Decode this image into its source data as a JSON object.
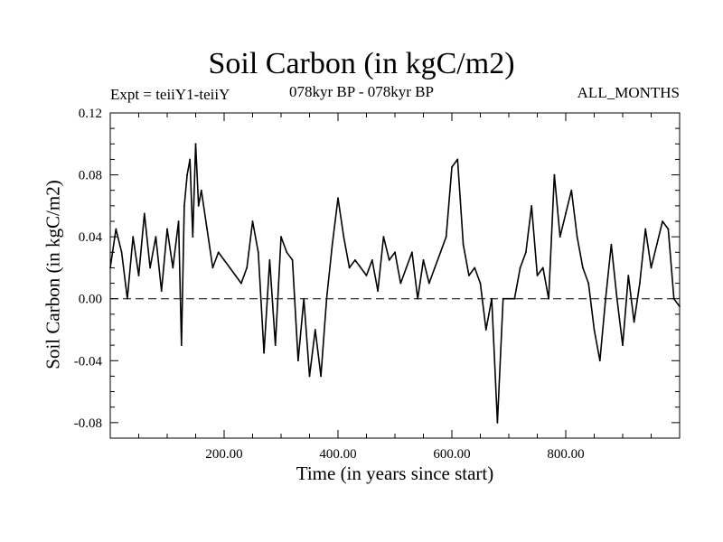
{
  "chart_data": {
    "type": "line",
    "title": "Soil Carbon (in kgC/m2)",
    "subtitle": "078kyr BP - 078kyr BP",
    "left_label": "Expt = teiiY1-teiiY",
    "right_label": "ALL_MONTHS",
    "xlabel": "Time (in years since start)",
    "ylabel": "Soil Carbon (in kgC/m2)",
    "xlim": [
      0,
      1000
    ],
    "ylim": [
      -0.09,
      0.12
    ],
    "x_ticks": [
      200,
      400,
      600,
      800
    ],
    "x_tick_labels": [
      "200.00",
      "400.00",
      "600.00",
      "800.00"
    ],
    "y_ticks": [
      0.12,
      0.08,
      0.04,
      0.0,
      -0.04,
      -0.08
    ],
    "y_tick_labels": [
      "0.12",
      "0.08",
      "0.04",
      "0.00",
      "-0.04",
      "-0.08"
    ],
    "zero_line": "dashed",
    "grid": false,
    "series": [
      {
        "color": "#000000",
        "x": [
          0,
          10,
          20,
          30,
          40,
          50,
          60,
          70,
          80,
          90,
          100,
          110,
          120,
          125,
          130,
          135,
          140,
          145,
          150,
          155,
          160,
          170,
          180,
          190,
          200,
          210,
          220,
          230,
          240,
          250,
          260,
          270,
          280,
          290,
          300,
          310,
          320,
          330,
          340,
          350,
          360,
          370,
          380,
          390,
          400,
          410,
          420,
          430,
          440,
          450,
          460,
          470,
          480,
          490,
          500,
          510,
          520,
          530,
          540,
          550,
          560,
          570,
          580,
          590,
          600,
          610,
          620,
          630,
          640,
          650,
          660,
          670,
          680,
          690,
          700,
          710,
          720,
          730,
          740,
          750,
          760,
          770,
          780,
          790,
          800,
          810,
          820,
          830,
          840,
          850,
          860,
          870,
          880,
          890,
          900,
          910,
          920,
          930,
          940,
          950,
          960,
          970,
          980,
          990,
          1000
        ],
        "y": [
          0.02,
          0.045,
          0.03,
          0.0,
          0.04,
          0.015,
          0.055,
          0.02,
          0.04,
          0.005,
          0.045,
          0.02,
          0.05,
          -0.03,
          0.06,
          0.08,
          0.09,
          0.04,
          0.1,
          0.06,
          0.07,
          0.045,
          0.02,
          0.03,
          0.025,
          0.02,
          0.015,
          0.01,
          0.02,
          0.05,
          0.03,
          -0.035,
          0.025,
          -0.03,
          0.04,
          0.03,
          0.025,
          -0.04,
          0.0,
          -0.05,
          -0.02,
          -0.05,
          0.0,
          0.035,
          0.065,
          0.04,
          0.02,
          0.025,
          0.02,
          0.015,
          0.025,
          0.005,
          0.04,
          0.025,
          0.03,
          0.01,
          0.02,
          0.03,
          0.0,
          0.025,
          0.01,
          0.02,
          0.03,
          0.04,
          0.085,
          0.09,
          0.035,
          0.015,
          0.02,
          0.01,
          -0.02,
          0.0,
          -0.08,
          0.0,
          0.0,
          0.0,
          0.02,
          0.03,
          0.06,
          0.015,
          0.02,
          0.0,
          0.08,
          0.04,
          0.055,
          0.07,
          0.04,
          0.02,
          0.01,
          -0.02,
          -0.04,
          0.0,
          0.035,
          0.0,
          -0.03,
          0.015,
          -0.015,
          0.01,
          0.045,
          0.02,
          0.035,
          0.05,
          0.045,
          0.0,
          -0.005
        ]
      }
    ]
  }
}
